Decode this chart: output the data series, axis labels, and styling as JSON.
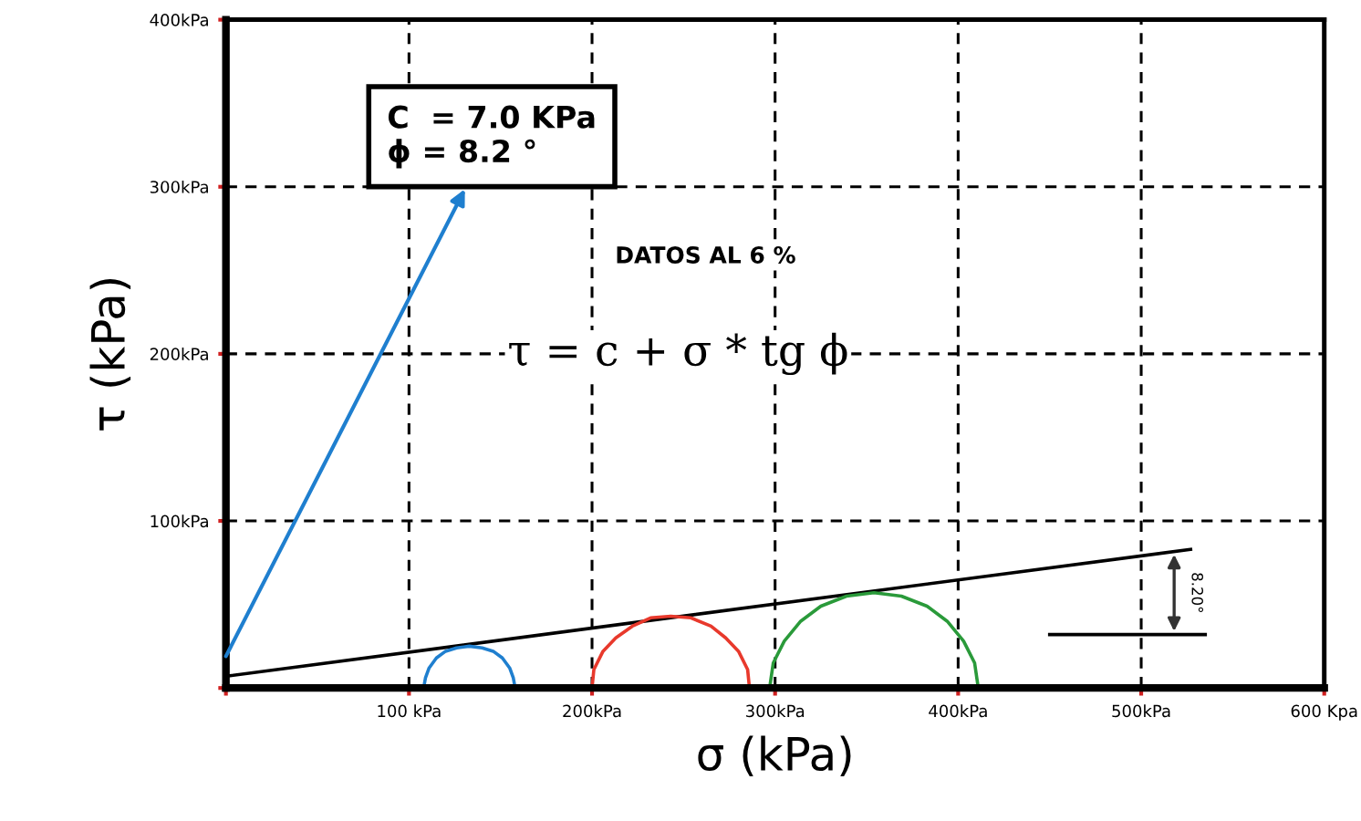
{
  "chart_data": {
    "type": "line",
    "xlabel": "σ (kPa)",
    "ylabel": "τ (kPa)",
    "series": [
      {
        "color": "#000000",
        "x": [
          0,
          527
        ],
        "values": [
          7,
          83
        ]
      },
      {
        "color": "#1f7fcf",
        "x": [
          158,
          157,
          155,
          151,
          146,
          140,
          133,
          126,
          120,
          115,
          111,
          109,
          108
        ],
        "values": [
          0,
          6,
          12,
          18,
          22,
          24,
          25,
          24,
          22,
          18,
          12,
          6,
          0
        ]
      },
      {
        "color": "#e8392c",
        "x": [
          286,
          285,
          280,
          273,
          265,
          254,
          243,
          232,
          222,
          213,
          206,
          201,
          200
        ],
        "values": [
          0,
          11,
          22,
          30,
          37,
          42,
          43,
          42,
          37,
          30,
          22,
          11,
          0
        ]
      },
      {
        "color": "#2a9a3a",
        "x": [
          411,
          409,
          403,
          394,
          383,
          369,
          354,
          339,
          325,
          314,
          305,
          299,
          297
        ],
        "values": [
          0,
          15,
          28,
          40,
          49,
          55,
          57,
          55,
          49,
          40,
          28,
          15,
          0
        ]
      }
    ],
    "xlim": [
      0,
      600
    ],
    "ylim": [
      0,
      400
    ],
    "xticks": [
      {
        "value": 0,
        "label": null
      },
      {
        "value": 100,
        "label": "100 kPa"
      },
      {
        "value": 200,
        "label": "200kPa"
      },
      {
        "value": 300,
        "label": "300kPa"
      },
      {
        "value": 400,
        "label": "400kPa"
      },
      {
        "value": 500,
        "label": "500kPa"
      },
      {
        "value": 600,
        "label": "600 Kpa"
      }
    ],
    "yticks": [
      {
        "value": 0,
        "label": null
      },
      {
        "value": 100,
        "label": "100kPa"
      },
      {
        "value": 200,
        "label": "200kPa"
      },
      {
        "value": 300,
        "label": "300kPa"
      },
      {
        "value": 400,
        "label": "400kPa"
      }
    ],
    "grid": true,
    "marker": "none",
    "line_style": "solid",
    "annotations": [
      "C  = 7.0 KPa\nϕ = 8.2 °",
      "DATOS AL 6 %",
      "τ = c + σ * tg ϕ",
      "8.20°"
    ]
  }
}
